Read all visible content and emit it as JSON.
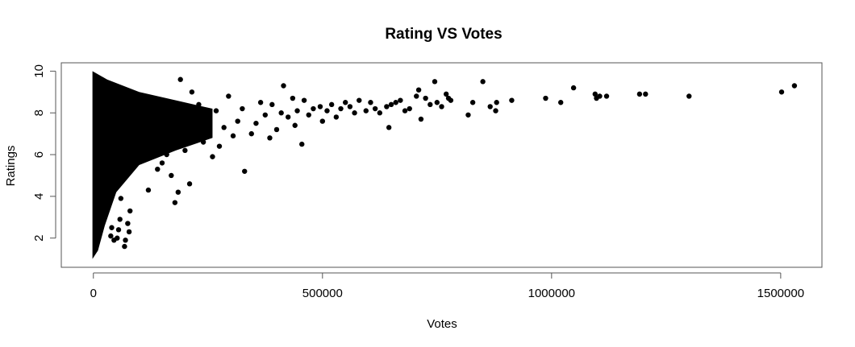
{
  "chart_data": {
    "type": "scatter",
    "title": "Rating VS Votes",
    "xlabel": "Votes",
    "ylabel": "Ratings",
    "xlim": [
      -70000,
      1590000
    ],
    "ylim": [
      0.6,
      10.4
    ],
    "xticks": [
      0,
      500000,
      1000000,
      1500000
    ],
    "xtick_labels": [
      "0",
      "500000",
      "1000000",
      "1500000"
    ],
    "yticks": [
      2,
      4,
      6,
      8,
      10
    ],
    "ytick_labels": [
      "2",
      "4",
      "6",
      "8",
      "10"
    ],
    "grid": false,
    "marker_color": "#000000",
    "points": [
      {
        "x": 1530000,
        "y": 9.3
      },
      {
        "x": 1502000,
        "y": 9.0
      },
      {
        "x": 1300000,
        "y": 8.8
      },
      {
        "x": 1205000,
        "y": 8.9
      },
      {
        "x": 1192000,
        "y": 8.9
      },
      {
        "x": 1120000,
        "y": 8.8
      },
      {
        "x": 1105000,
        "y": 8.8
      },
      {
        "x": 1098000,
        "y": 8.7
      },
      {
        "x": 1095000,
        "y": 8.9
      },
      {
        "x": 1048000,
        "y": 9.2
      },
      {
        "x": 1020000,
        "y": 8.5
      },
      {
        "x": 987000,
        "y": 8.7
      },
      {
        "x": 913000,
        "y": 8.6
      },
      {
        "x": 880000,
        "y": 8.5
      },
      {
        "x": 878000,
        "y": 8.1
      },
      {
        "x": 866000,
        "y": 8.3
      },
      {
        "x": 850000,
        "y": 9.5
      },
      {
        "x": 828000,
        "y": 8.5
      },
      {
        "x": 818000,
        "y": 7.9
      },
      {
        "x": 780000,
        "y": 8.6
      },
      {
        "x": 775000,
        "y": 8.7
      },
      {
        "x": 770000,
        "y": 8.9
      },
      {
        "x": 760000,
        "y": 8.3
      },
      {
        "x": 750000,
        "y": 8.5
      },
      {
        "x": 745000,
        "y": 9.5
      },
      {
        "x": 735000,
        "y": 8.4
      },
      {
        "x": 725000,
        "y": 8.7
      },
      {
        "x": 715000,
        "y": 7.7
      },
      {
        "x": 710000,
        "y": 9.1
      },
      {
        "x": 705000,
        "y": 8.8
      },
      {
        "x": 690000,
        "y": 8.2
      },
      {
        "x": 680000,
        "y": 8.1
      },
      {
        "x": 670000,
        "y": 8.6
      },
      {
        "x": 660000,
        "y": 8.5
      },
      {
        "x": 650000,
        "y": 8.4
      },
      {
        "x": 645000,
        "y": 7.3
      },
      {
        "x": 640000,
        "y": 8.3
      },
      {
        "x": 625000,
        "y": 8.0
      },
      {
        "x": 615000,
        "y": 8.2
      },
      {
        "x": 605000,
        "y": 8.5
      },
      {
        "x": 595000,
        "y": 8.1
      },
      {
        "x": 580000,
        "y": 8.6
      },
      {
        "x": 570000,
        "y": 8.0
      },
      {
        "x": 560000,
        "y": 8.3
      },
      {
        "x": 550000,
        "y": 8.5
      },
      {
        "x": 540000,
        "y": 8.2
      },
      {
        "x": 530000,
        "y": 7.8
      },
      {
        "x": 520000,
        "y": 8.4
      },
      {
        "x": 510000,
        "y": 8.1
      },
      {
        "x": 500000,
        "y": 7.6
      },
      {
        "x": 495000,
        "y": 8.3
      },
      {
        "x": 480000,
        "y": 8.2
      },
      {
        "x": 470000,
        "y": 7.9
      },
      {
        "x": 460000,
        "y": 8.6
      },
      {
        "x": 455000,
        "y": 6.5
      },
      {
        "x": 445000,
        "y": 8.1
      },
      {
        "x": 440000,
        "y": 7.4
      },
      {
        "x": 435000,
        "y": 8.7
      },
      {
        "x": 425000,
        "y": 7.8
      },
      {
        "x": 415000,
        "y": 9.3
      },
      {
        "x": 410000,
        "y": 8.0
      },
      {
        "x": 400000,
        "y": 7.2
      },
      {
        "x": 390000,
        "y": 8.4
      },
      {
        "x": 385000,
        "y": 6.8
      },
      {
        "x": 375000,
        "y": 7.9
      },
      {
        "x": 365000,
        "y": 8.5
      },
      {
        "x": 355000,
        "y": 7.5
      },
      {
        "x": 345000,
        "y": 7.0
      },
      {
        "x": 330000,
        "y": 5.2
      },
      {
        "x": 325000,
        "y": 8.2
      },
      {
        "x": 315000,
        "y": 7.6
      },
      {
        "x": 305000,
        "y": 6.9
      },
      {
        "x": 295000,
        "y": 8.8
      },
      {
        "x": 285000,
        "y": 7.3
      },
      {
        "x": 275000,
        "y": 6.4
      },
      {
        "x": 268000,
        "y": 8.1
      },
      {
        "x": 260000,
        "y": 5.9
      },
      {
        "x": 250000,
        "y": 7.7
      },
      {
        "x": 240000,
        "y": 6.6
      },
      {
        "x": 230000,
        "y": 8.4
      },
      {
        "x": 215000,
        "y": 9.0
      },
      {
        "x": 210000,
        "y": 4.6
      },
      {
        "x": 200000,
        "y": 6.2
      },
      {
        "x": 190000,
        "y": 9.6
      },
      {
        "x": 185000,
        "y": 4.2
      },
      {
        "x": 178000,
        "y": 3.7
      },
      {
        "x": 170000,
        "y": 5.0
      },
      {
        "x": 160000,
        "y": 6.0
      },
      {
        "x": 150000,
        "y": 5.6
      },
      {
        "x": 140000,
        "y": 5.3
      },
      {
        "x": 120000,
        "y": 4.3
      },
      {
        "x": 80000,
        "y": 3.3
      },
      {
        "x": 78000,
        "y": 2.3
      },
      {
        "x": 75000,
        "y": 2.7
      },
      {
        "x": 70000,
        "y": 1.9
      },
      {
        "x": 68000,
        "y": 1.6
      },
      {
        "x": 60000,
        "y": 3.9
      },
      {
        "x": 58000,
        "y": 2.9
      },
      {
        "x": 55000,
        "y": 2.4
      },
      {
        "x": 52000,
        "y": 2.0
      },
      {
        "x": 45000,
        "y": 1.9
      },
      {
        "x": 40000,
        "y": 2.5
      },
      {
        "x": 38000,
        "y": 2.1
      }
    ]
  }
}
